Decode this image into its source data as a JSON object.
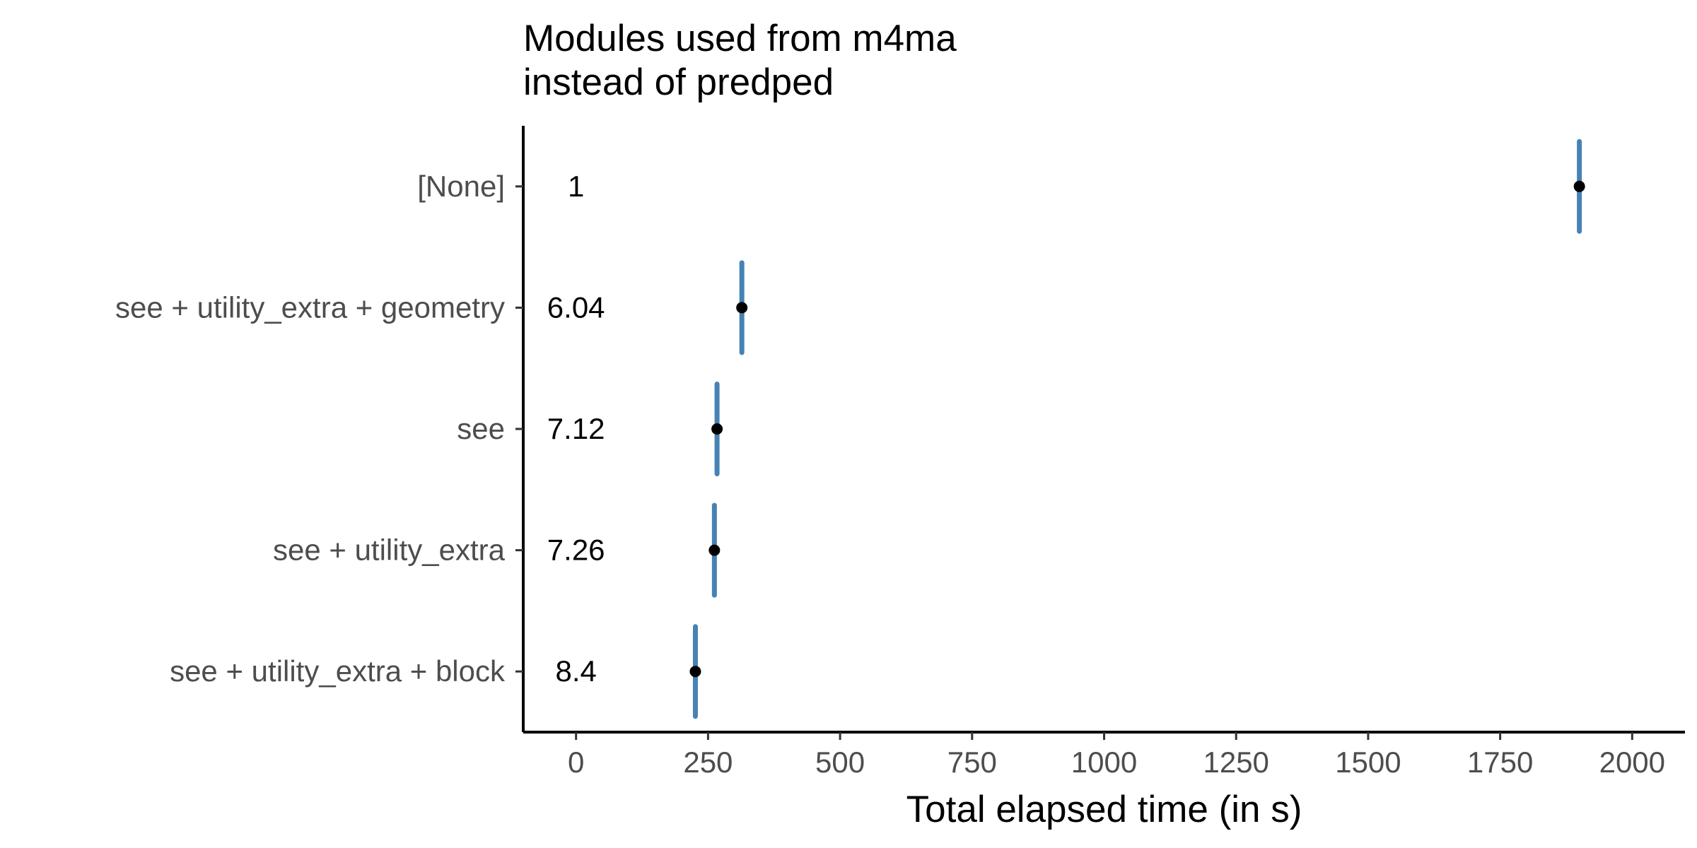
{
  "chart_data": {
    "type": "scatter",
    "title_lines": [
      "Modules used from m4ma",
      "instead of predped"
    ],
    "xlabel": "Total elapsed time (in s)",
    "ylabel": "",
    "xlim": [
      -100,
      2100
    ],
    "x_ticks": [
      0,
      250,
      500,
      750,
      1000,
      1250,
      1500,
      1750,
      2000
    ],
    "x_tick_labels": [
      "0",
      "250",
      "500",
      "750",
      "1000",
      "1250",
      "1500",
      "1750",
      "2000"
    ],
    "categories": [
      "[None]",
      "see + utility_extra + geometry",
      "see",
      "see + utility_extra",
      "see + utility_extra + block"
    ],
    "points": [
      {
        "category": "[None]",
        "x": 1900,
        "low": 1865,
        "high": 1935,
        "label": "1"
      },
      {
        "category": "see + utility_extra + geometry",
        "x": 314,
        "low": 290,
        "high": 338,
        "label": "6.04"
      },
      {
        "category": "see",
        "x": 267,
        "low": 243,
        "high": 291,
        "label": "7.12"
      },
      {
        "category": "see + utility_extra",
        "x": 262,
        "low": 238,
        "high": 286,
        "label": "7.26"
      },
      {
        "category": "see + utility_extra + block",
        "x": 226,
        "low": 202,
        "high": 250,
        "label": "8.4"
      }
    ],
    "label_x": 0,
    "grid": false,
    "colors": {
      "interval": "#4682b4",
      "point": "#000000",
      "axis": "#000000"
    }
  }
}
